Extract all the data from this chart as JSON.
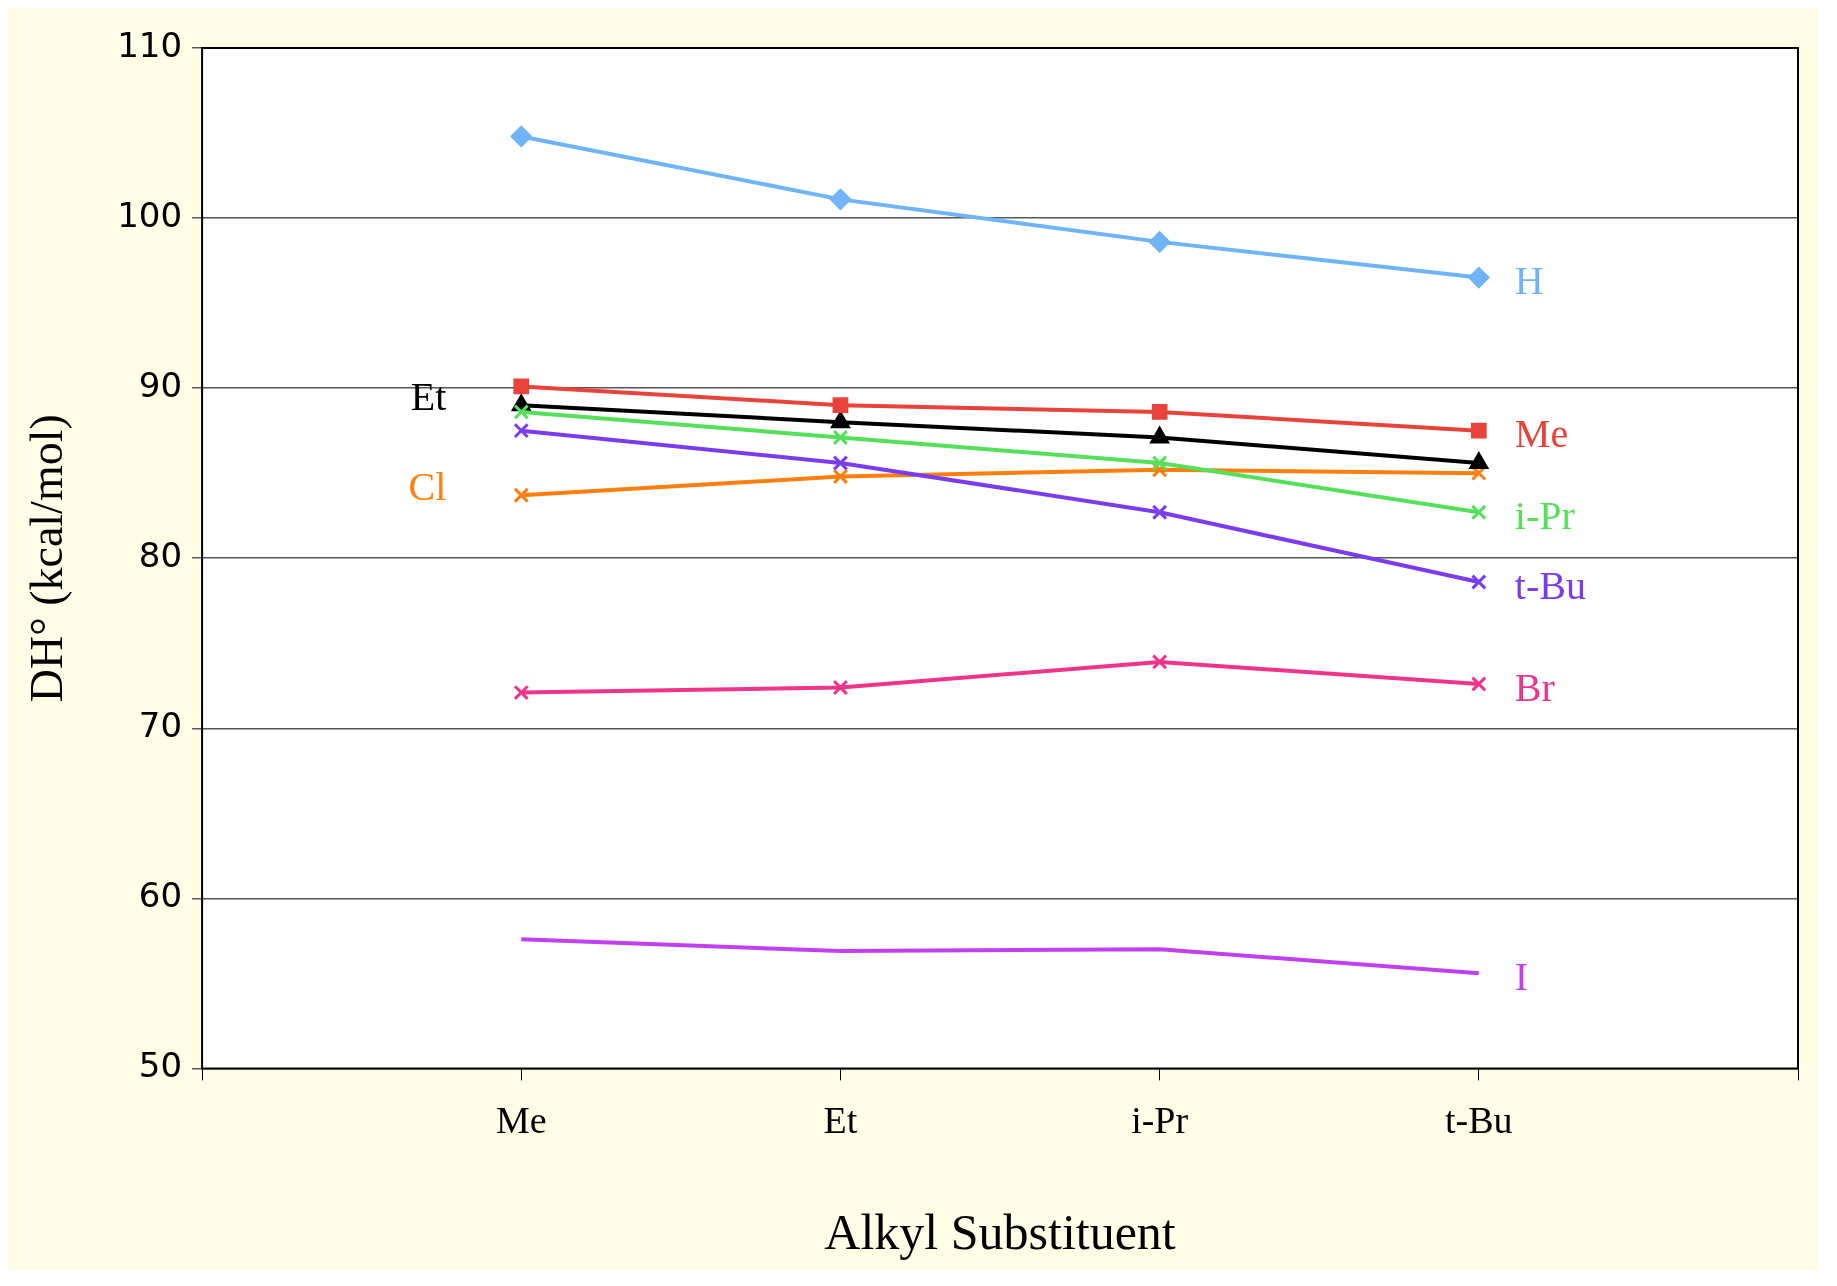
{
  "chart_data": {
    "type": "line",
    "xlabel": "Alkyl Substituent",
    "ylabel": "DH° (kcal/mol)",
    "categories": [
      null,
      "Me",
      "Et",
      "i-Pr",
      "t-Bu",
      null
    ],
    "ylim": [
      50,
      110
    ],
    "yticks": [
      50,
      60,
      70,
      80,
      90,
      100,
      110
    ],
    "grid": "y",
    "legend": false,
    "line_style": "solid",
    "series": [
      {
        "name": "H",
        "color": "#6eb4f7",
        "marker": "diamond",
        "values": [
          null,
          104.8,
          101.1,
          98.6,
          96.5,
          null
        ]
      },
      {
        "name": "Me",
        "color": "#e8433a",
        "marker": "square",
        "values": [
          null,
          90.1,
          89.0,
          88.6,
          87.5,
          null
        ]
      },
      {
        "name": "i-Pr",
        "color": "#55e05a",
        "marker": "cross",
        "values": [
          null,
          88.6,
          87.1,
          85.6,
          82.7,
          null
        ]
      },
      {
        "name": "t-Bu",
        "color": "#7b3cf0",
        "marker": "cross",
        "values": [
          null,
          87.5,
          85.6,
          82.7,
          78.6,
          null
        ]
      },
      {
        "name": "Br",
        "color": "#f0348c",
        "marker": "cross",
        "values": [
          null,
          72.1,
          72.4,
          73.9,
          72.6,
          null
        ]
      },
      {
        "name": "I",
        "color": "#c040f0",
        "marker": "none",
        "values": [
          null,
          57.6,
          56.9,
          57.0,
          55.6,
          null
        ]
      },
      {
        "name": "Et",
        "color": "#000000",
        "marker": "triangle",
        "values": [
          null,
          89.0,
          88.0,
          87.1,
          85.6,
          null
        ]
      },
      {
        "name": "Cl",
        "color": "#ff7f0e",
        "marker": "cross",
        "values": [
          null,
          83.7,
          84.8,
          85.2,
          85.0,
          null
        ]
      }
    ]
  }
}
